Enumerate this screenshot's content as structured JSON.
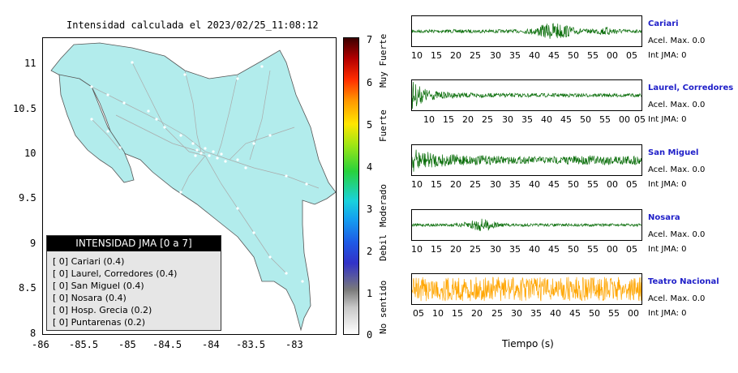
{
  "map": {
    "title": "Intensidad calculada el 2023/02/25_11:08:12",
    "x_ticks": [
      "-86",
      "-85.5",
      "-85",
      "-84.5",
      "-84",
      "-83.5",
      "-83"
    ],
    "y_ticks": [
      "11",
      "10.5",
      "10",
      "9.5",
      "9",
      "8.5",
      "8"
    ],
    "land_color": "#b2ecec",
    "legend": {
      "title": "INTENSIDAD JMA [0 a 7]",
      "items": [
        "[ 0]  Cariari (0.4)",
        "[ 0]  Laurel, Corredores (0.4)",
        "[ 0]  San Miguel (0.4)",
        "[ 0]  Nosara (0.4)",
        "[ 0]  Hosp. Grecia (0.2)",
        "[ 0]  Puntarenas (0.2)"
      ]
    }
  },
  "colorbar": {
    "ticks": [
      "7",
      "6",
      "5",
      "4",
      "3",
      "2",
      "1",
      "0"
    ],
    "words": [
      "Muy Fuerte",
      "Fuerte",
      "Moderado",
      "Debil",
      "No sentido"
    ]
  },
  "stations": [
    {
      "name": "Cariari",
      "acel": "Acel. Max. 0.0",
      "int": "Int JMA: 0",
      "ticks": [
        "10",
        "15",
        "20",
        "25",
        "30",
        "35",
        "40",
        "45",
        "50",
        "55",
        "00",
        "05"
      ],
      "color": "#0a6e0a"
    },
    {
      "name": "Laurel, Corredores",
      "acel": "Acel. Max. 0.0",
      "int": "Int JMA: 0",
      "ticks": [
        "10",
        "15",
        "20",
        "25",
        "30",
        "35",
        "40",
        "45",
        "50",
        "55",
        "00",
        "05"
      ],
      "color": "#0a6e0a"
    },
    {
      "name": "San Miguel",
      "acel": "Acel. Max. 0.0",
      "int": "Int JMA: 0",
      "ticks": [
        "10",
        "15",
        "20",
        "25",
        "30",
        "35",
        "40",
        "45",
        "50",
        "55",
        "00",
        "05"
      ],
      "color": "#0a6e0a"
    },
    {
      "name": "Nosara",
      "acel": "Acel. Max. 0.0",
      "int": "Int JMA: 0",
      "ticks": [
        "10",
        "15",
        "20",
        "25",
        "30",
        "35",
        "40",
        "45",
        "50",
        "55",
        "00",
        "05"
      ],
      "color": "#0a6e0a"
    },
    {
      "name": "Teatro Nacional",
      "acel": "Acel. Max. 0.0",
      "int": "Int JMA: 0",
      "ticks": [
        "05",
        "10",
        "15",
        "20",
        "25",
        "30",
        "35",
        "40",
        "45",
        "50",
        "55",
        "00"
      ],
      "color": "#ffa500"
    }
  ],
  "xlabel": "Tiempo (s)"
}
